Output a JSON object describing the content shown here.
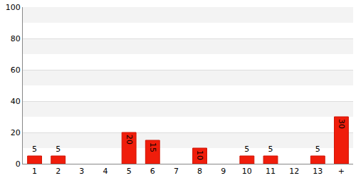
{
  "chart_data": {
    "type": "bar",
    "categories": [
      "1",
      "2",
      "3",
      "4",
      "5",
      "6",
      "7",
      "8",
      "9",
      "10",
      "11",
      "12",
      "13",
      "+"
    ],
    "values": [
      5,
      5,
      null,
      null,
      20,
      15,
      null,
      10,
      null,
      5,
      5,
      null,
      5,
      30
    ],
    "color": "#f01d0b",
    "ylim": [
      0,
      100
    ],
    "yticks": [
      0,
      20,
      40,
      60,
      80,
      100
    ],
    "grid": true,
    "data_labels": true
  }
}
